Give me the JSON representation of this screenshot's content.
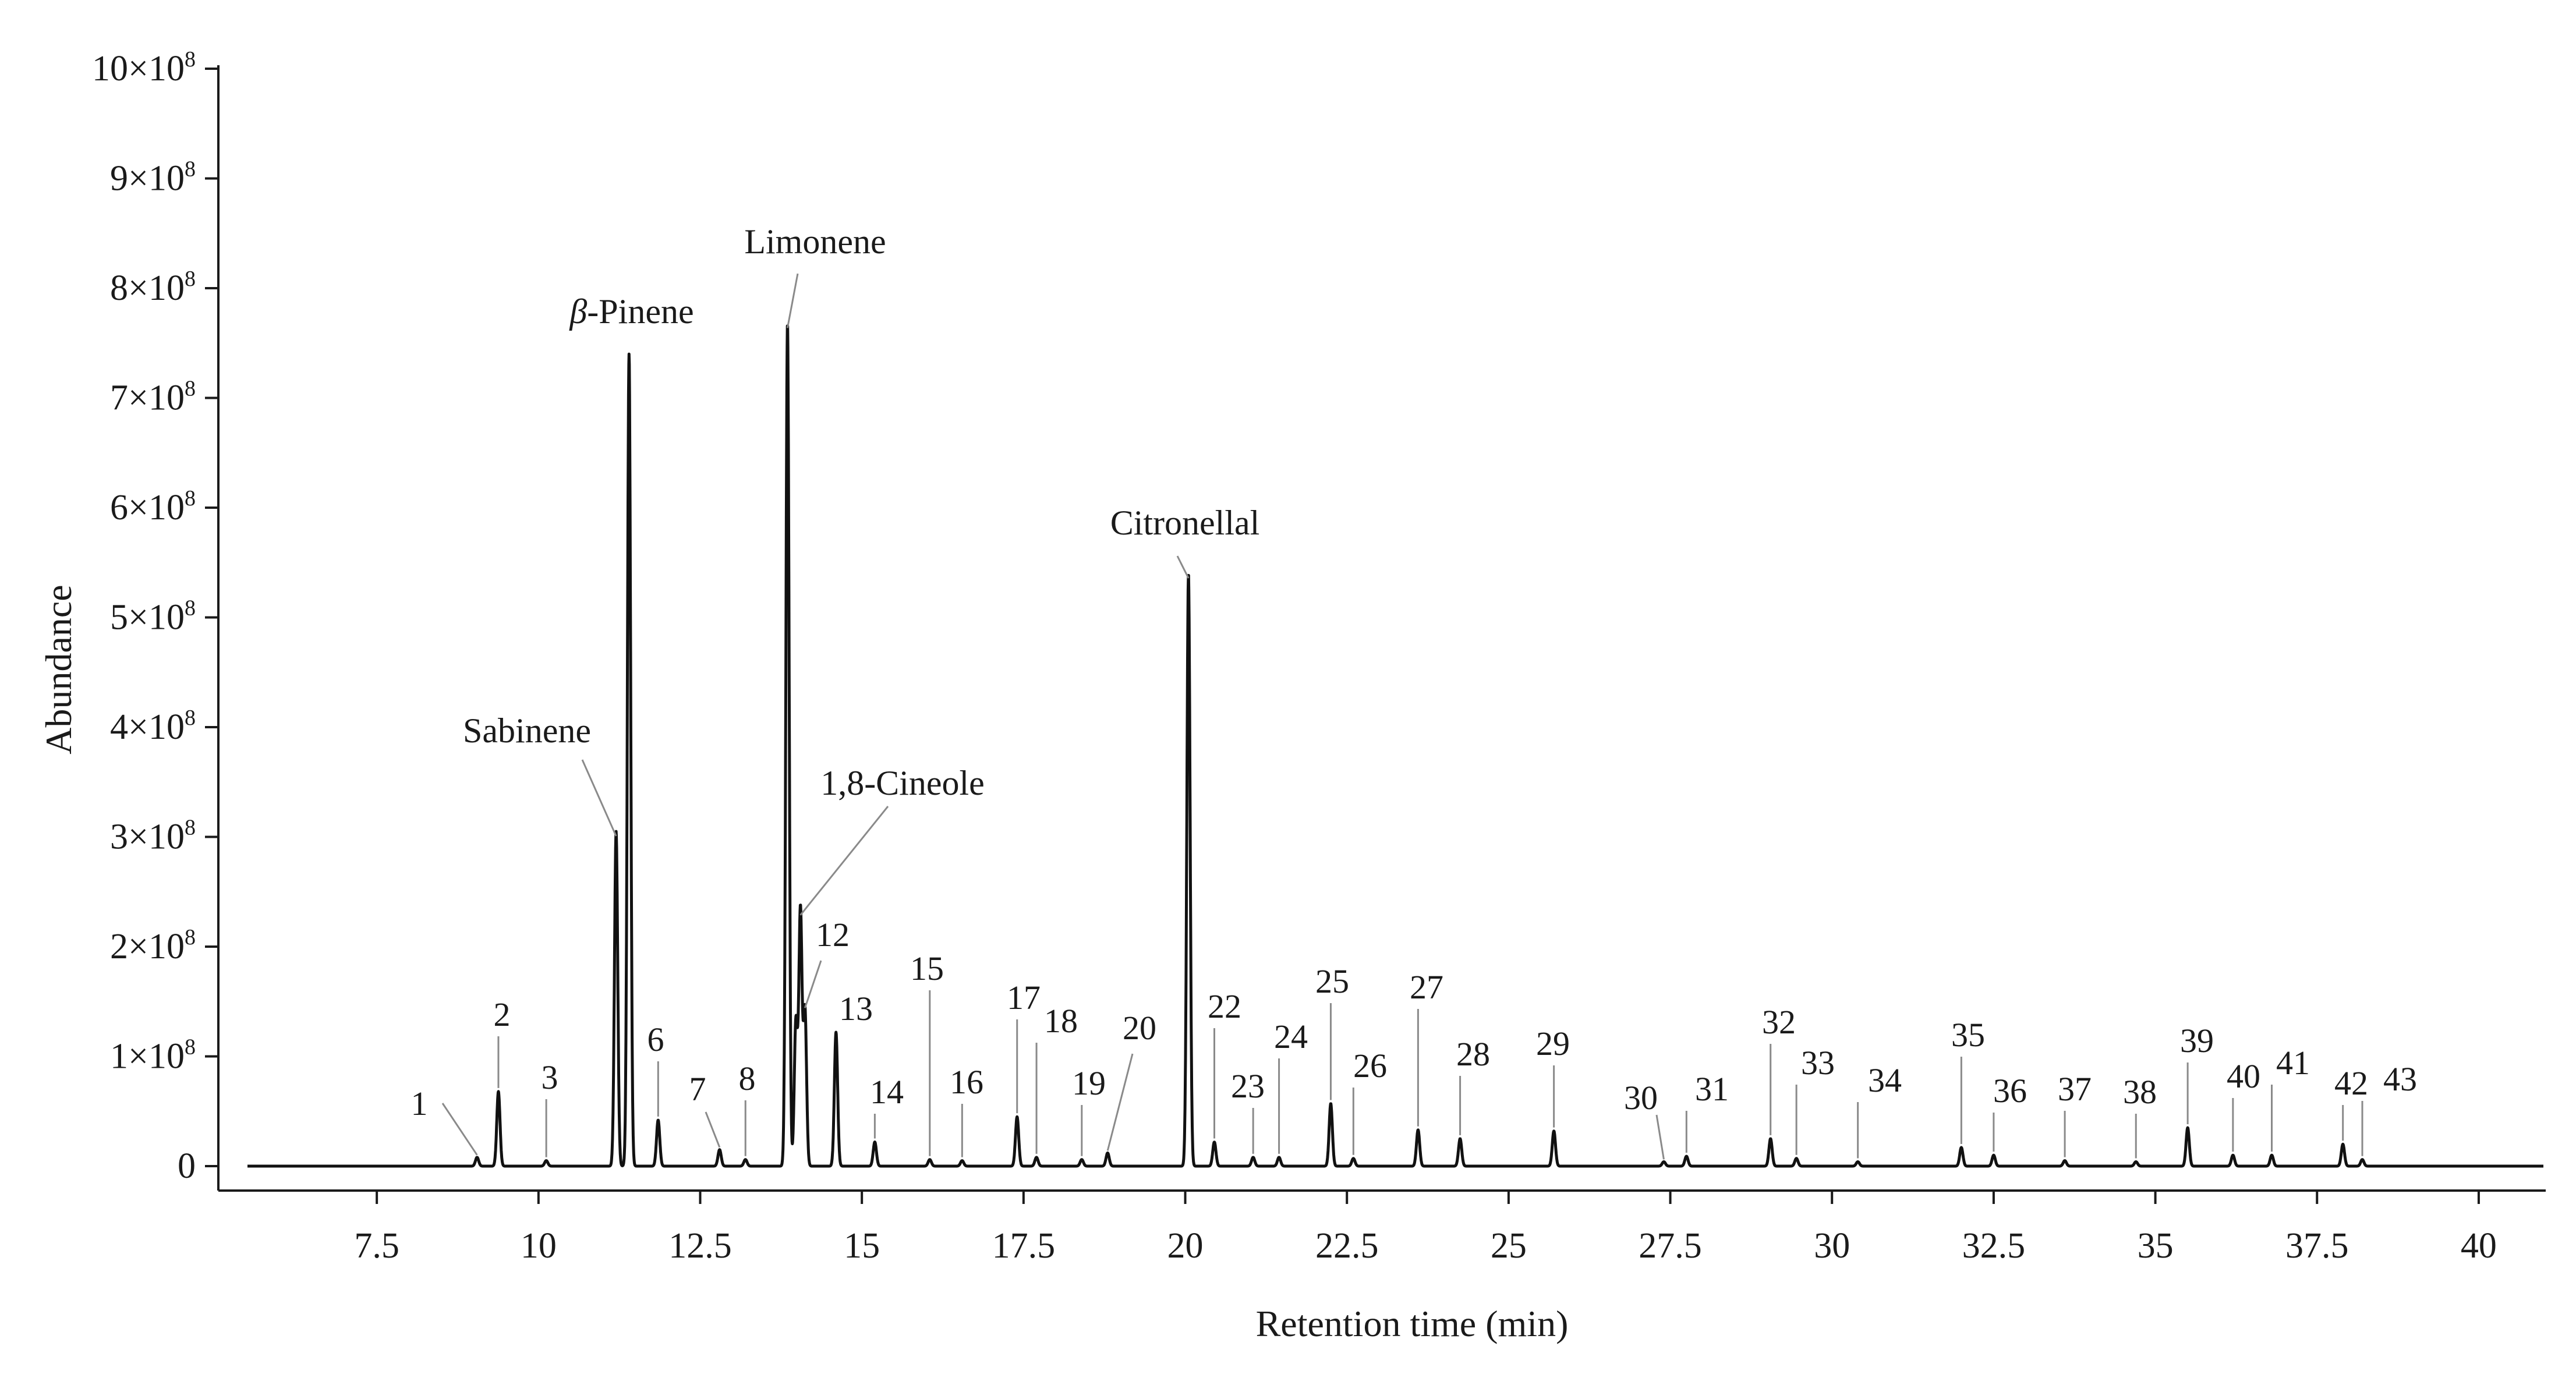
{
  "chart_data": {
    "type": "line",
    "title": "",
    "xlabel": "Retention time (min)",
    "ylabel": "Abundance",
    "xlim": [
      5.5,
      41.0
    ],
    "ylim": [
      0,
      10
    ],
    "y_unit_multiplier": "×10⁸",
    "grid": false,
    "x_ticks": [
      {
        "value": 7.5,
        "label": "7.5"
      },
      {
        "value": 10,
        "label": "10"
      },
      {
        "value": 12.5,
        "label": "12.5"
      },
      {
        "value": 15,
        "label": "15"
      },
      {
        "value": 17.5,
        "label": "17.5"
      },
      {
        "value": 20,
        "label": "20"
      },
      {
        "value": 22.5,
        "label": "22.5"
      },
      {
        "value": 25,
        "label": "25"
      },
      {
        "value": 27.5,
        "label": "27.5"
      },
      {
        "value": 30,
        "label": "30"
      },
      {
        "value": 32.5,
        "label": "32.5"
      },
      {
        "value": 35,
        "label": "35"
      },
      {
        "value": 37.5,
        "label": "37.5"
      },
      {
        "value": 40,
        "label": "40"
      }
    ],
    "y_ticks": [
      {
        "value": 0,
        "mant": "0",
        "exp": ""
      },
      {
        "value": 1,
        "mant": "1×10",
        "exp": "8"
      },
      {
        "value": 2,
        "mant": "2×10",
        "exp": "8"
      },
      {
        "value": 3,
        "mant": "3×10",
        "exp": "8"
      },
      {
        "value": 4,
        "mant": "4×10",
        "exp": "8"
      },
      {
        "value": 5,
        "mant": "5×10",
        "exp": "8"
      },
      {
        "value": 6,
        "mant": "6×10",
        "exp": "8"
      },
      {
        "value": 7,
        "mant": "7×10",
        "exp": "8"
      },
      {
        "value": 8,
        "mant": "8×10",
        "exp": "8"
      },
      {
        "value": 9,
        "mant": "9×10",
        "exp": "8"
      },
      {
        "value": 10,
        "mant": "10×10",
        "exp": "8"
      }
    ],
    "peaks": [
      {
        "rt": 9.05,
        "h": 0.08
      },
      {
        "rt": 9.38,
        "h": 0.68
      },
      {
        "rt": 10.12,
        "h": 0.05
      },
      {
        "rt": 11.2,
        "h": 3.05
      },
      {
        "rt": 11.4,
        "h": 7.4
      },
      {
        "rt": 11.85,
        "h": 0.42
      },
      {
        "rt": 12.8,
        "h": 0.15
      },
      {
        "rt": 13.2,
        "h": 0.06
      },
      {
        "rt": 13.85,
        "h": 7.68
      },
      {
        "rt": 13.98,
        "h": 1.32
      },
      {
        "rt": 14.05,
        "h": 2.33
      },
      {
        "rt": 14.12,
        "h": 1.42
      },
      {
        "rt": 14.6,
        "h": 1.22
      },
      {
        "rt": 15.2,
        "h": 0.22
      },
      {
        "rt": 16.05,
        "h": 0.06
      },
      {
        "rt": 16.55,
        "h": 0.05
      },
      {
        "rt": 17.4,
        "h": 0.45
      },
      {
        "rt": 17.7,
        "h": 0.08
      },
      {
        "rt": 18.4,
        "h": 0.06
      },
      {
        "rt": 18.8,
        "h": 0.12
      },
      {
        "rt": 20.05,
        "h": 5.4
      },
      {
        "rt": 20.45,
        "h": 0.22
      },
      {
        "rt": 21.05,
        "h": 0.08
      },
      {
        "rt": 21.45,
        "h": 0.08
      },
      {
        "rt": 22.25,
        "h": 0.57
      },
      {
        "rt": 22.6,
        "h": 0.07
      },
      {
        "rt": 23.6,
        "h": 0.33
      },
      {
        "rt": 24.25,
        "h": 0.25
      },
      {
        "rt": 25.7,
        "h": 0.32
      },
      {
        "rt": 27.4,
        "h": 0.04
      },
      {
        "rt": 27.75,
        "h": 0.09
      },
      {
        "rt": 29.05,
        "h": 0.25
      },
      {
        "rt": 29.45,
        "h": 0.07
      },
      {
        "rt": 30.4,
        "h": 0.04
      },
      {
        "rt": 32.0,
        "h": 0.17
      },
      {
        "rt": 32.5,
        "h": 0.1
      },
      {
        "rt": 33.6,
        "h": 0.05
      },
      {
        "rt": 34.7,
        "h": 0.04
      },
      {
        "rt": 35.5,
        "h": 0.35
      },
      {
        "rt": 36.2,
        "h": 0.1
      },
      {
        "rt": 36.8,
        "h": 0.1
      },
      {
        "rt": 37.9,
        "h": 0.2
      },
      {
        "rt": 38.2,
        "h": 0.06
      }
    ],
    "named_peaks": [
      {
        "name": "Sabinene",
        "rt": 11.2,
        "h": 3.05
      },
      {
        "name": "β-Pinene",
        "rt": 11.4,
        "h": 7.4
      },
      {
        "name": "Limonene",
        "rt": 13.85,
        "h": 7.68
      },
      {
        "name": "1,8-Cineole",
        "rt": 14.05,
        "h": 2.33
      },
      {
        "name": "Citronellal",
        "rt": 20.05,
        "h": 5.4
      }
    ],
    "numbered_peaks": [
      {
        "label": "1",
        "rt": 9.05,
        "h": 0.08
      },
      {
        "label": "2",
        "rt": 9.38,
        "h": 0.68
      },
      {
        "label": "3",
        "rt": 10.12,
        "h": 0.05
      },
      {
        "label": "6",
        "rt": 11.85,
        "h": 0.42
      },
      {
        "label": "7",
        "rt": 12.8,
        "h": 0.15
      },
      {
        "label": "8",
        "rt": 13.2,
        "h": 0.06
      },
      {
        "label": "12",
        "rt": 14.12,
        "h": 1.42
      },
      {
        "label": "13",
        "rt": 14.6,
        "h": 1.22
      },
      {
        "label": "14",
        "rt": 15.2,
        "h": 0.22
      },
      {
        "label": "15",
        "rt": 16.05,
        "h": 0.06
      },
      {
        "label": "16",
        "rt": 16.55,
        "h": 0.05
      },
      {
        "label": "17",
        "rt": 17.4,
        "h": 0.45
      },
      {
        "label": "18",
        "rt": 17.7,
        "h": 0.08
      },
      {
        "label": "19",
        "rt": 18.4,
        "h": 0.06
      },
      {
        "label": "20",
        "rt": 18.8,
        "h": 0.12
      },
      {
        "label": "22",
        "rt": 20.45,
        "h": 0.22
      },
      {
        "label": "23",
        "rt": 21.05,
        "h": 0.08
      },
      {
        "label": "24",
        "rt": 21.45,
        "h": 0.08
      },
      {
        "label": "25",
        "rt": 22.25,
        "h": 0.57
      },
      {
        "label": "26",
        "rt": 22.6,
        "h": 0.07
      },
      {
        "label": "27",
        "rt": 23.6,
        "h": 0.33
      },
      {
        "label": "28",
        "rt": 24.25,
        "h": 0.25
      },
      {
        "label": "29",
        "rt": 25.7,
        "h": 0.32
      },
      {
        "label": "30",
        "rt": 27.4,
        "h": 0.04
      },
      {
        "label": "31",
        "rt": 27.75,
        "h": 0.09
      },
      {
        "label": "32",
        "rt": 29.05,
        "h": 0.25
      },
      {
        "label": "33",
        "rt": 29.45,
        "h": 0.07
      },
      {
        "label": "34",
        "rt": 30.4,
        "h": 0.04
      },
      {
        "label": "35",
        "rt": 32.0,
        "h": 0.17
      },
      {
        "label": "36",
        "rt": 32.5,
        "h": 0.1
      },
      {
        "label": "37",
        "rt": 33.6,
        "h": 0.05
      },
      {
        "label": "38",
        "rt": 34.7,
        "h": 0.04
      },
      {
        "label": "39",
        "rt": 35.5,
        "h": 0.35
      },
      {
        "label": "40",
        "rt": 36.2,
        "h": 0.1
      },
      {
        "label": "41",
        "rt": 36.8,
        "h": 0.1
      },
      {
        "label": "42",
        "rt": 37.9,
        "h": 0.2
      },
      {
        "label": "43",
        "rt": 38.2,
        "h": 0.06
      }
    ]
  }
}
